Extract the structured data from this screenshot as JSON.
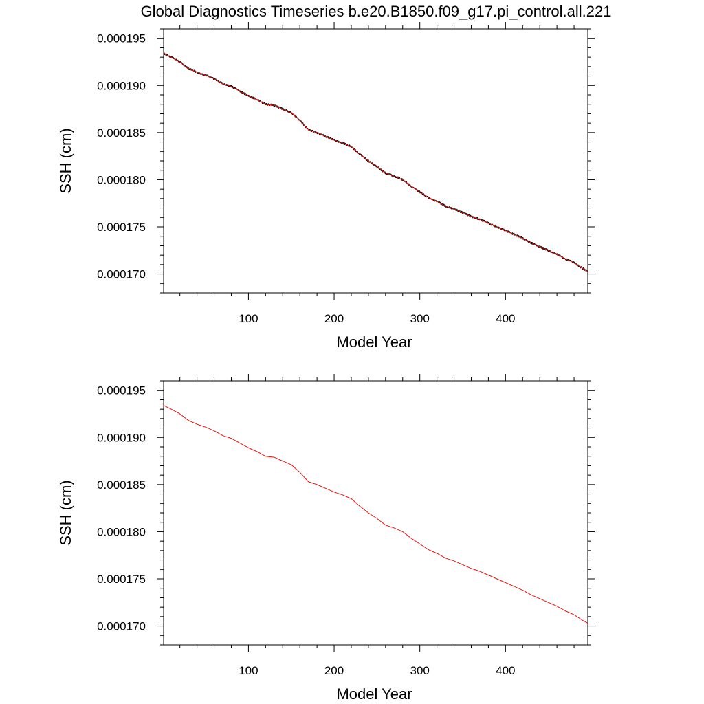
{
  "figure": {
    "title": "Global Diagnostics Timeseries b.e20.B1850.f09_g17.pi_control.all.221"
  },
  "chart_data": [
    {
      "type": "line",
      "title": "",
      "xlabel": "Model Year",
      "ylabel": "SSH (cm)",
      "xlim": [
        1,
        496
      ],
      "ylim": [
        0.000168,
        0.000196
      ],
      "x_ticks": [
        100,
        200,
        300,
        400
      ],
      "x_tick_labels": [
        "100",
        "200",
        "300",
        "400"
      ],
      "y_ticks": [
        0.00017,
        0.000175,
        0.00018,
        0.000185,
        0.00019,
        0.000195
      ],
      "y_tick_labels": [
        "0.000170",
        "0.000175",
        "0.000180",
        "0.000185",
        "0.000190",
        "0.000195"
      ],
      "grid": false,
      "series": [
        {
          "kind": "monthly",
          "color": "#000000",
          "x": [
            1,
            10,
            20,
            30,
            40,
            50,
            60,
            70,
            80,
            90,
            100,
            110,
            120,
            130,
            140,
            150,
            160,
            170,
            180,
            190,
            200,
            210,
            220,
            230,
            240,
            250,
            260,
            270,
            280,
            290,
            300,
            310,
            320,
            330,
            340,
            350,
            360,
            370,
            380,
            390,
            400,
            410,
            420,
            430,
            440,
            450,
            460,
            470,
            480,
            490,
            496
          ],
          "values": [
            0.0001934,
            0.000193,
            0.0001925,
            0.0001918,
            0.0001914,
            0.0001911,
            0.0001907,
            0.0001902,
            0.0001899,
            0.0001894,
            0.0001889,
            0.0001885,
            0.000188,
            0.0001879,
            0.0001875,
            0.0001871,
            0.0001863,
            0.0001853,
            0.000185,
            0.0001846,
            0.0001842,
            0.0001839,
            0.0001835,
            0.0001827,
            0.000182,
            0.0001814,
            0.0001807,
            0.0001804,
            0.00018,
            0.0001793,
            0.0001787,
            0.0001781,
            0.0001777,
            0.0001772,
            0.0001769,
            0.0001765,
            0.0001761,
            0.0001758,
            0.0001754,
            0.000175,
            0.0001746,
            0.0001742,
            0.0001738,
            0.0001733,
            0.0001729,
            0.0001725,
            0.0001721,
            0.0001716,
            0.0001712,
            0.0001706,
            0.0001703
          ]
        },
        {
          "kind": "annual",
          "color": "#e8140f",
          "x": [
            1,
            10,
            20,
            30,
            40,
            50,
            60,
            70,
            80,
            90,
            100,
            110,
            120,
            130,
            140,
            150,
            160,
            170,
            180,
            190,
            200,
            210,
            220,
            230,
            240,
            250,
            260,
            270,
            280,
            290,
            300,
            310,
            320,
            330,
            340,
            350,
            360,
            370,
            380,
            390,
            400,
            410,
            420,
            430,
            440,
            450,
            460,
            470,
            480,
            490,
            496
          ],
          "values": [
            0.0001934,
            0.000193,
            0.0001925,
            0.0001918,
            0.0001914,
            0.0001911,
            0.0001907,
            0.0001902,
            0.0001899,
            0.0001894,
            0.0001889,
            0.0001885,
            0.000188,
            0.0001879,
            0.0001875,
            0.0001871,
            0.0001863,
            0.0001853,
            0.000185,
            0.0001846,
            0.0001842,
            0.0001839,
            0.0001835,
            0.0001827,
            0.000182,
            0.0001814,
            0.0001807,
            0.0001804,
            0.00018,
            0.0001793,
            0.0001787,
            0.0001781,
            0.0001777,
            0.0001772,
            0.0001769,
            0.0001765,
            0.0001761,
            0.0001758,
            0.0001754,
            0.000175,
            0.0001746,
            0.0001742,
            0.0001738,
            0.0001733,
            0.0001729,
            0.0001725,
            0.0001721,
            0.0001716,
            0.0001712,
            0.0001706,
            0.0001703
          ]
        }
      ]
    },
    {
      "type": "line",
      "title": "",
      "xlabel": "Model Year",
      "ylabel": "SSH (cm)",
      "xlim": [
        1,
        496
      ],
      "ylim": [
        0.000168,
        0.000196
      ],
      "x_ticks": [
        100,
        200,
        300,
        400
      ],
      "x_tick_labels": [
        "100",
        "200",
        "300",
        "400"
      ],
      "y_ticks": [
        0.00017,
        0.000175,
        0.00018,
        0.000185,
        0.00019,
        0.000195
      ],
      "y_tick_labels": [
        "0.000170",
        "0.000175",
        "0.000180",
        "0.000185",
        "0.000190",
        "0.000195"
      ],
      "grid": false,
      "series": [
        {
          "kind": "annual",
          "color": "#e8140f",
          "x": [
            1,
            10,
            20,
            30,
            40,
            50,
            60,
            70,
            80,
            90,
            100,
            110,
            120,
            130,
            140,
            150,
            160,
            170,
            180,
            190,
            200,
            210,
            220,
            230,
            240,
            250,
            260,
            270,
            280,
            290,
            300,
            310,
            320,
            330,
            340,
            350,
            360,
            370,
            380,
            390,
            400,
            410,
            420,
            430,
            440,
            450,
            460,
            470,
            480,
            490,
            496
          ],
          "values": [
            0.0001934,
            0.000193,
            0.0001925,
            0.0001918,
            0.0001914,
            0.0001911,
            0.0001907,
            0.0001902,
            0.0001899,
            0.0001894,
            0.0001889,
            0.0001885,
            0.000188,
            0.0001879,
            0.0001875,
            0.0001871,
            0.0001863,
            0.0001853,
            0.000185,
            0.0001846,
            0.0001842,
            0.0001839,
            0.0001835,
            0.0001827,
            0.000182,
            0.0001814,
            0.0001807,
            0.0001804,
            0.00018,
            0.0001793,
            0.0001787,
            0.0001781,
            0.0001777,
            0.0001772,
            0.0001769,
            0.0001765,
            0.0001761,
            0.0001758,
            0.0001754,
            0.000175,
            0.0001746,
            0.0001742,
            0.0001738,
            0.0001733,
            0.0001729,
            0.0001725,
            0.0001721,
            0.0001716,
            0.0001712,
            0.0001706,
            0.0001703
          ]
        }
      ]
    }
  ]
}
